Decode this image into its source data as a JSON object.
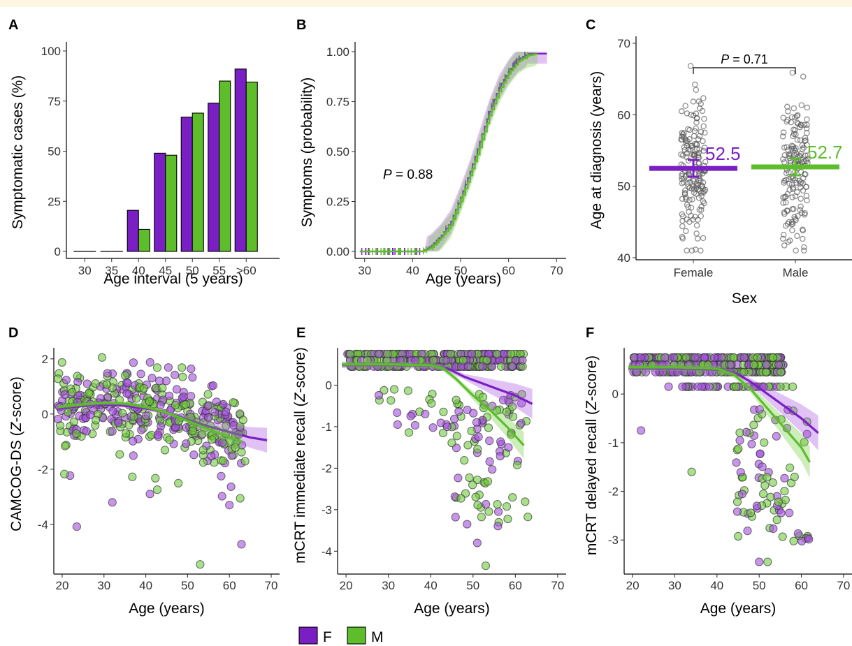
{
  "colors": {
    "F": "#7a1fc4",
    "M": "#5dbd2b",
    "F_fill": "#a54fe0",
    "M_fill": "#6fcc3c"
  },
  "legend": {
    "items": [
      {
        "key": "F",
        "label": "F"
      },
      {
        "key": "M",
        "label": "M"
      }
    ]
  },
  "chart_data": [
    {
      "panel": "A",
      "type": "bar",
      "xlabel": "Age interval (5 years)",
      "ylabel": "Symptomatic cases (%)",
      "categories": [
        "30",
        "35",
        "40",
        "45",
        "50",
        "55",
        ">60"
      ],
      "series": [
        {
          "key": "F",
          "values": [
            0,
            0,
            20.5,
            49,
            67,
            74,
            91
          ]
        },
        {
          "key": "M",
          "values": [
            0,
            0,
            11,
            48,
            69,
            85,
            84.5
          ]
        }
      ],
      "ylim": [
        0,
        100
      ],
      "yticks": [
        0,
        25,
        50,
        75,
        100
      ]
    },
    {
      "panel": "B",
      "type": "line",
      "xlabel": "Age (years)",
      "ylabel": "Symptoms (probability)",
      "annotation": {
        "italic": "P",
        "text": " = 0.88"
      },
      "xlim": [
        28,
        72
      ],
      "xticks": [
        30,
        40,
        50,
        60,
        70
      ],
      "ylim": [
        0,
        1
      ],
      "yticks": [
        "0.00",
        "0.25",
        "0.50",
        "0.75",
        "1.00"
      ],
      "series": [
        {
          "key": "F",
          "points": [
            [
              29,
              0
            ],
            [
              42,
              0
            ],
            [
              44,
              0.03
            ],
            [
              46,
              0.08
            ],
            [
              48,
              0.15
            ],
            [
              50,
              0.27
            ],
            [
              52,
              0.4
            ],
            [
              54,
              0.55
            ],
            [
              56,
              0.7
            ],
            [
              58,
              0.82
            ],
            [
              60,
              0.9
            ],
            [
              62,
              0.96
            ],
            [
              64,
              0.99
            ],
            [
              68,
              0.99
            ]
          ]
        },
        {
          "key": "M",
          "points": [
            [
              29,
              0
            ],
            [
              42,
              0
            ],
            [
              44,
              0.02
            ],
            [
              46,
              0.07
            ],
            [
              48,
              0.13
            ],
            [
              50,
              0.25
            ],
            [
              52,
              0.38
            ],
            [
              54,
              0.52
            ],
            [
              56,
              0.68
            ],
            [
              58,
              0.8
            ],
            [
              60,
              0.89
            ],
            [
              62,
              0.95
            ],
            [
              64,
              0.98
            ],
            [
              66,
              0.99
            ]
          ]
        }
      ]
    },
    {
      "panel": "C",
      "type": "scatter",
      "xlabel": "Sex",
      "ylabel": "Age at diagnosis (years)",
      "categories": [
        "Female",
        "Male"
      ],
      "annotation": {
        "italic": "P",
        "text": " = 0.71"
      },
      "means": [
        {
          "key": "F",
          "value": 52.5,
          "label": "52.5"
        },
        {
          "key": "M",
          "value": 52.7,
          "label": "52.7"
        }
      ],
      "ylim": [
        39.5,
        70.5
      ],
      "yticks": [
        40,
        50,
        60,
        70
      ]
    },
    {
      "panel": "D",
      "type": "scatter",
      "xlabel": "Age (years)",
      "ylabel_main": "CAMCOG-DS (",
      "ylabel_italic": "Z",
      "ylabel_tail": "-score)",
      "xlim": [
        18,
        72
      ],
      "xticks": [
        20,
        30,
        40,
        50,
        60,
        70
      ],
      "ylim": [
        -5.8,
        2.4
      ],
      "yticks": [
        -4,
        -2,
        0,
        2
      ],
      "trend": [
        {
          "key": "F",
          "points": [
            [
              19,
              0.2
            ],
            [
              25,
              0.3
            ],
            [
              30,
              0.35
            ],
            [
              35,
              0.3
            ],
            [
              40,
              0.2
            ],
            [
              45,
              0.05
            ],
            [
              50,
              -0.2
            ],
            [
              55,
              -0.45
            ],
            [
              60,
              -0.65
            ],
            [
              65,
              -0.85
            ],
            [
              69,
              -0.95
            ]
          ]
        },
        {
          "key": "M",
          "points": [
            [
              19,
              0.25
            ],
            [
              25,
              0.35
            ],
            [
              30,
              0.4
            ],
            [
              35,
              0.38
            ],
            [
              40,
              0.25
            ],
            [
              45,
              0.05
            ],
            [
              50,
              -0.25
            ],
            [
              55,
              -0.55
            ],
            [
              60,
              -0.85
            ],
            [
              63,
              -1.0
            ]
          ]
        }
      ]
    },
    {
      "panel": "E",
      "type": "scatter",
      "xlabel": "Age (years)",
      "ylabel_main": "mCRT immediate recall (",
      "ylabel_italic": "Z",
      "ylabel_tail": "-score)",
      "xlim": [
        18,
        72
      ],
      "xticks": [
        20,
        30,
        40,
        50,
        60,
        70
      ],
      "ylim": [
        -4.55,
        0.9
      ],
      "yticks": [
        -4,
        -3,
        -2,
        -1,
        0
      ],
      "trend": [
        {
          "key": "F",
          "points": [
            [
              19,
              0.48
            ],
            [
              30,
              0.48
            ],
            [
              40,
              0.47
            ],
            [
              44,
              0.4
            ],
            [
              48,
              0.2
            ],
            [
              52,
              0.05
            ],
            [
              56,
              -0.1
            ],
            [
              60,
              -0.25
            ],
            [
              64,
              -0.45
            ]
          ]
        },
        {
          "key": "M",
          "points": [
            [
              19,
              0.5
            ],
            [
              30,
              0.5
            ],
            [
              40,
              0.48
            ],
            [
              43,
              0.4
            ],
            [
              46,
              0.15
            ],
            [
              50,
              -0.25
            ],
            [
              54,
              -0.6
            ],
            [
              58,
              -1.0
            ],
            [
              62,
              -1.45
            ]
          ]
        }
      ]
    },
    {
      "panel": "F",
      "type": "scatter",
      "xlabel": "Age (years)",
      "ylabel_main": "mCRT delayed recall (",
      "ylabel_italic": "Z",
      "ylabel_tail": "-score)",
      "xlim": [
        18,
        72
      ],
      "xticks": [
        20,
        30,
        40,
        50,
        60,
        70
      ],
      "ylim": [
        -3.7,
        0.95
      ],
      "yticks": [
        -3,
        -2,
        -1,
        0
      ],
      "trend": [
        {
          "key": "F",
          "points": [
            [
              19,
              0.52
            ],
            [
              30,
              0.52
            ],
            [
              40,
              0.5
            ],
            [
              44,
              0.45
            ],
            [
              48,
              0.25
            ],
            [
              52,
              0.0
            ],
            [
              56,
              -0.25
            ],
            [
              60,
              -0.5
            ],
            [
              64,
              -0.8
            ]
          ]
        },
        {
          "key": "M",
          "points": [
            [
              19,
              0.55
            ],
            [
              30,
              0.55
            ],
            [
              40,
              0.52
            ],
            [
              44,
              0.4
            ],
            [
              48,
              0.1
            ],
            [
              52,
              -0.3
            ],
            [
              56,
              -0.7
            ],
            [
              60,
              -1.1
            ],
            [
              62,
              -1.4
            ]
          ]
        }
      ]
    }
  ]
}
